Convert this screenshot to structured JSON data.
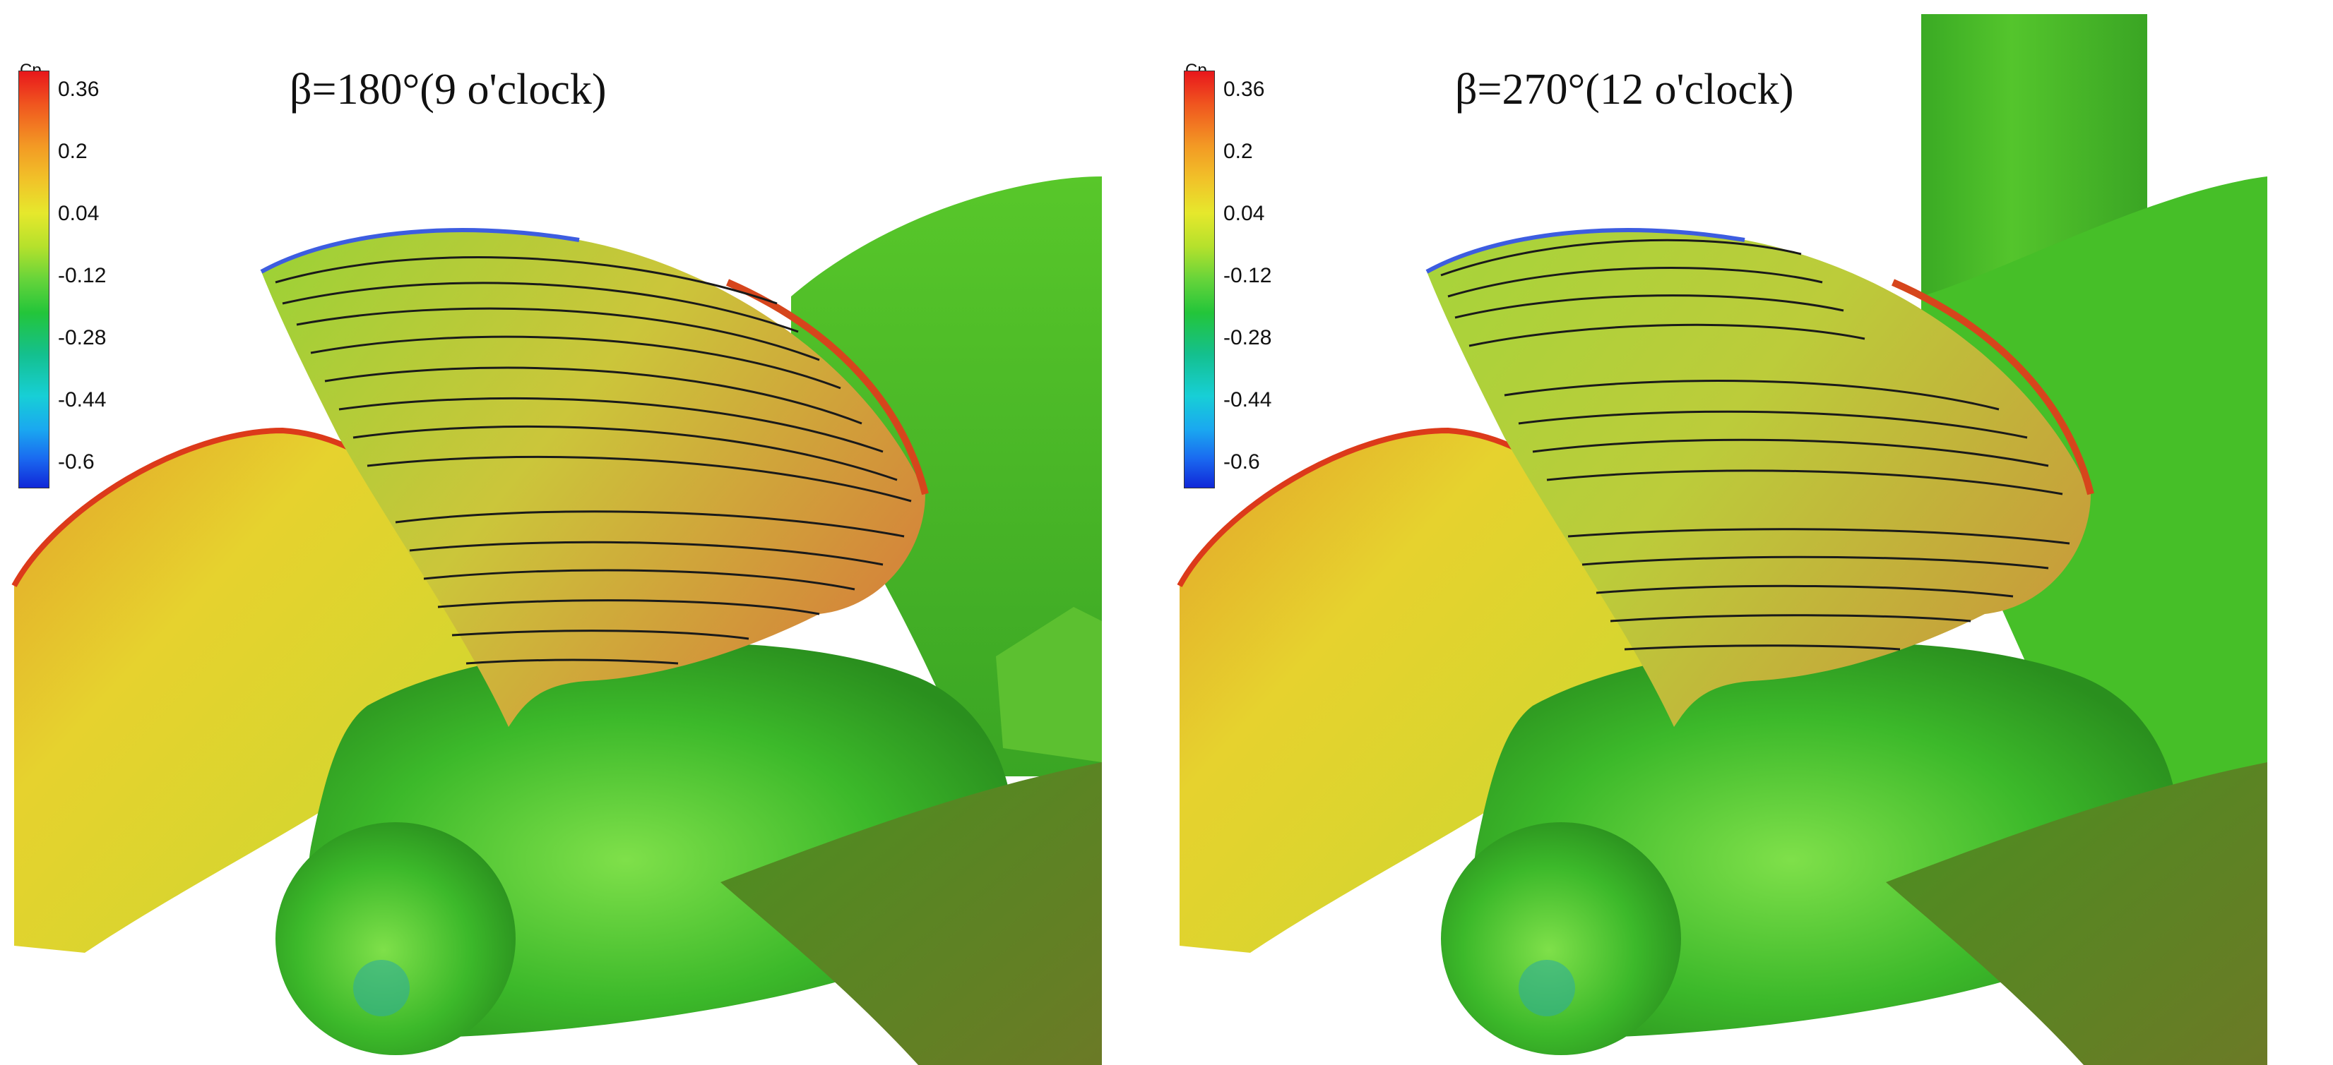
{
  "panels": [
    {
      "title": "β=180°(9 o'clock)",
      "colorbar": {
        "label": "Cp",
        "ticks": [
          "0.36",
          "0.2",
          "0.04",
          "-0.12",
          "-0.28",
          "-0.44",
          "-0.6"
        ]
      }
    },
    {
      "title": "β=270°(12 o'clock)",
      "colorbar": {
        "label": "Cp",
        "ticks": [
          "0.36",
          "0.2",
          "0.04",
          "-0.12",
          "-0.28",
          "-0.44",
          "-0.6"
        ]
      }
    }
  ],
  "colors": {
    "background": "#ffffff",
    "hub_green": "#46c22a",
    "blade_yellow": "#cbd634",
    "blade_red_edge": "#dc3a1a",
    "streamline": "#1a1a1a"
  }
}
